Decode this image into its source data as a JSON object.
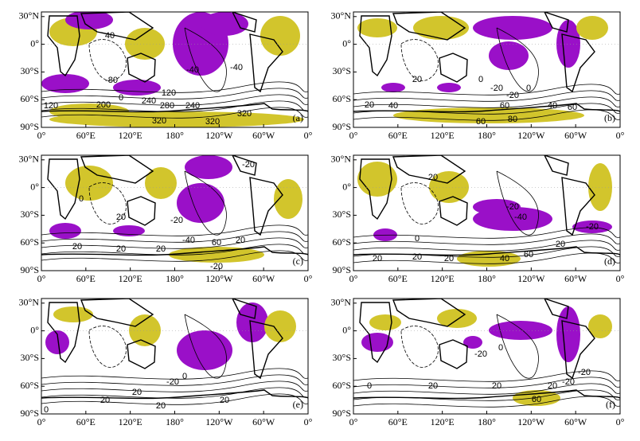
{
  "lat_labels": [
    "30°N",
    "0°",
    "30°S",
    "60°S",
    "90°S"
  ],
  "lon_labels": [
    "0°",
    "60°E",
    "120°E",
    "180°",
    "120°W",
    "60°W",
    "0°"
  ],
  "panels": [
    {
      "label": "(a)",
      "contour_labels": [
        "40",
        "-80",
        "120",
        "200",
        "0",
        "240",
        "120",
        "280",
        "320",
        "320",
        "320",
        "-40",
        "-40",
        "240"
      ]
    },
    {
      "label": "(b)",
      "contour_labels": [
        "20",
        "0",
        "-20",
        "0",
        "-20",
        "20",
        "40",
        "60",
        "80",
        "60",
        "40",
        "60"
      ]
    },
    {
      "label": "(c)",
      "contour_labels": [
        "-20",
        "0",
        "20",
        "-20",
        "-40",
        "20",
        "20",
        "20",
        "60",
        "20",
        "-20"
      ]
    },
    {
      "label": "(d)",
      "contour_labels": [
        "20",
        "-20",
        "-40",
        "0",
        "20",
        "20",
        "20",
        "40",
        "60",
        "20",
        "-20"
      ]
    },
    {
      "label": "(e)",
      "contour_labels": [
        "0",
        "20",
        "20",
        "-20",
        "20",
        "20",
        "0"
      ]
    },
    {
      "label": "(f)",
      "contour_labels": [
        "0",
        "-20",
        "0",
        "20",
        "20",
        "20",
        "60",
        "-20",
        "-20"
      ]
    }
  ]
}
